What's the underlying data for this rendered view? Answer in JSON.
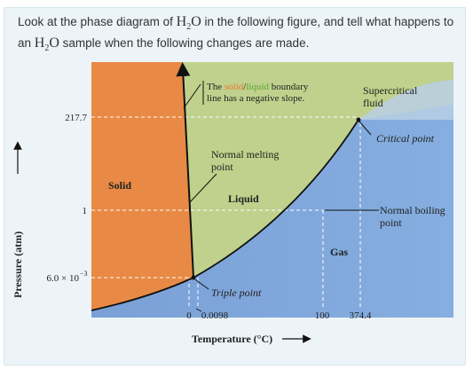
{
  "question": {
    "pre": "Look at the phase diagram of ",
    "h2o_h": "H",
    "h2o_sub": "2",
    "h2o_o": "O",
    "mid": " in the following figure, and tell what happens to an ",
    "post": " sample when the following changes are made."
  },
  "diagram": {
    "callout_pre": "The ",
    "callout_solid": "solid",
    "callout_slash": "/",
    "callout_liquid": "liquid",
    "callout_post": " boundary",
    "callout_line2": "line has a negative slope.",
    "supercritical_1": "Supercritical",
    "supercritical_2": "fluid",
    "critical_point": "Critical point",
    "normal_melting_1": "Normal melting",
    "normal_melting_2": "point",
    "solid": "Solid",
    "liquid": "Liquid",
    "gas": "Gas",
    "normal_boiling_1": "Normal boiling",
    "normal_boiling_2": "point",
    "triple_point": "Triple point",
    "y_tick_1": "217.7",
    "y_tick_2": "1",
    "y_tick_3": "6.0 × 10",
    "y_tick_3_exp": "−3",
    "x_tick_1": "0",
    "x_tick_2": "0.0098",
    "x_tick_3": "100",
    "x_tick_4": "374.4",
    "y_axis_label": "Pressure (atm)",
    "x_axis_label": "Temperature (°C)",
    "colors": {
      "solid": "#e88a45",
      "liquid": "#bfd18c",
      "gas": "#7ea3d8",
      "callout_solid": "#e8772e",
      "callout_liquid": "#5aa82a"
    }
  }
}
